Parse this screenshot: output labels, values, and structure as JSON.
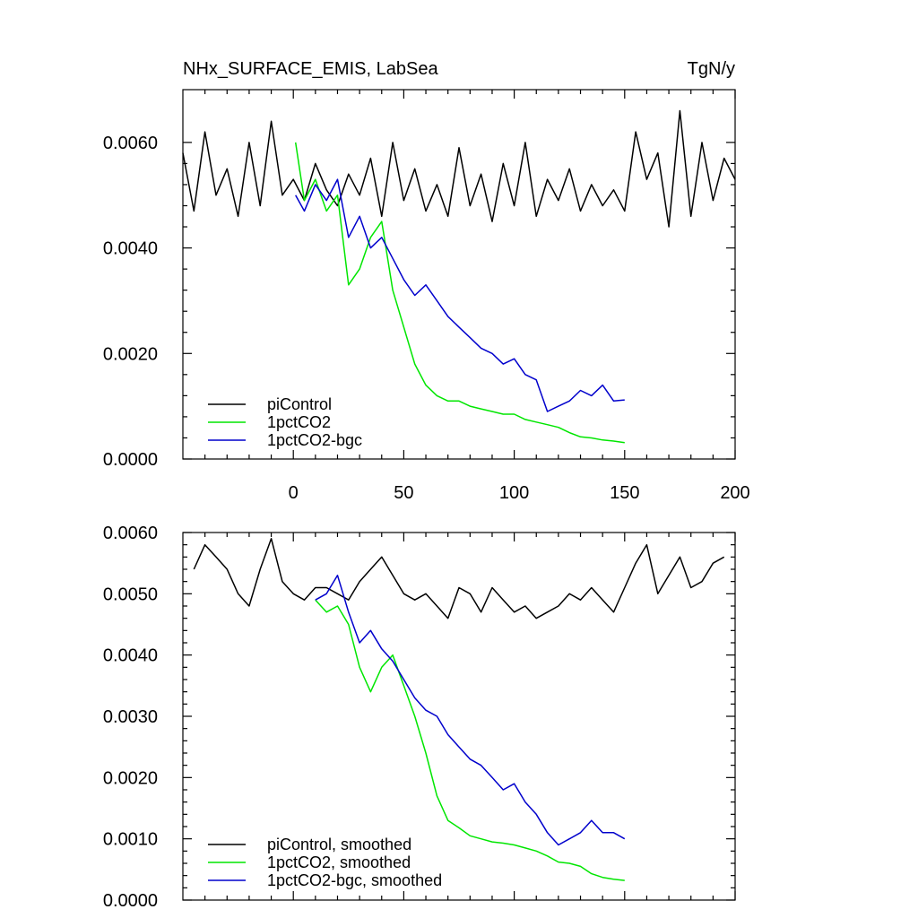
{
  "chart_data": [
    {
      "type": "line",
      "title_left": "NHx_SURFACE_EMIS, LabSea",
      "title_right": "TgN/y",
      "xlim": [
        -50,
        200
      ],
      "ylim": [
        0,
        0.007
      ],
      "xticks": [
        0,
        50,
        100,
        150,
        200
      ],
      "xtick_labels": [
        "0",
        "50",
        "100",
        "150",
        "200"
      ],
      "yticks": [
        0,
        0.002,
        0.004,
        0.006
      ],
      "ytick_labels": [
        "0.0000",
        "0.0020",
        "0.0040",
        "0.0060"
      ],
      "legend_position": "bottom-left",
      "series": [
        {
          "name": "piControl",
          "color": "#000000",
          "x": [
            -50,
            -45,
            -40,
            -35,
            -30,
            -25,
            -20,
            -15,
            -10,
            -5,
            0,
            5,
            10,
            15,
            20,
            25,
            30,
            35,
            40,
            45,
            50,
            55,
            60,
            65,
            70,
            75,
            80,
            85,
            90,
            95,
            100,
            105,
            110,
            115,
            120,
            125,
            130,
            135,
            140,
            145,
            150,
            155,
            160,
            165,
            170,
            175,
            180,
            185,
            190,
            195,
            200
          ],
          "values": [
            0.0058,
            0.0047,
            0.0062,
            0.005,
            0.0055,
            0.0046,
            0.006,
            0.0048,
            0.0064,
            0.005,
            0.0053,
            0.0049,
            0.0056,
            0.0051,
            0.0048,
            0.0054,
            0.005,
            0.0057,
            0.0046,
            0.006,
            0.0049,
            0.0055,
            0.0047,
            0.0052,
            0.0046,
            0.0059,
            0.0048,
            0.0054,
            0.0045,
            0.0056,
            0.0048,
            0.006,
            0.0046,
            0.0053,
            0.0049,
            0.0055,
            0.0047,
            0.0052,
            0.0048,
            0.0051,
            0.0047,
            0.0062,
            0.0053,
            0.0058,
            0.0044,
            0.0066,
            0.0046,
            0.006,
            0.0049,
            0.0057,
            0.0053
          ]
        },
        {
          "name": "1pctCO2",
          "color": "#00e600",
          "x": [
            1,
            5,
            10,
            15,
            20,
            25,
            30,
            35,
            40,
            45,
            50,
            55,
            60,
            65,
            70,
            75,
            80,
            85,
            90,
            95,
            100,
            105,
            110,
            115,
            120,
            125,
            130,
            135,
            140,
            145,
            150
          ],
          "values": [
            0.006,
            0.0049,
            0.0053,
            0.0047,
            0.005,
            0.0033,
            0.0036,
            0.0042,
            0.0045,
            0.0032,
            0.0025,
            0.0018,
            0.0014,
            0.0012,
            0.0011,
            0.0011,
            0.001,
            0.00095,
            0.0009,
            0.00085,
            0.00085,
            0.00075,
            0.0007,
            0.00065,
            0.0006,
            0.0005,
            0.00042,
            0.0004,
            0.00036,
            0.00034,
            0.00031
          ]
        },
        {
          "name": "1pctCO2-bgc",
          "color": "#0000cc",
          "x": [
            1,
            5,
            10,
            15,
            20,
            25,
            30,
            35,
            40,
            45,
            50,
            55,
            60,
            65,
            70,
            75,
            80,
            85,
            90,
            95,
            100,
            105,
            110,
            115,
            120,
            125,
            130,
            135,
            140,
            145,
            150
          ],
          "values": [
            0.005,
            0.0047,
            0.0052,
            0.0049,
            0.0053,
            0.0042,
            0.0046,
            0.004,
            0.0042,
            0.0038,
            0.0034,
            0.0031,
            0.0033,
            0.003,
            0.0027,
            0.0025,
            0.0023,
            0.0021,
            0.002,
            0.0018,
            0.0019,
            0.0016,
            0.0015,
            0.0009,
            0.001,
            0.0011,
            0.0013,
            0.0012,
            0.0014,
            0.0011,
            0.00112
          ]
        }
      ]
    },
    {
      "type": "line",
      "xlim": [
        -50,
        200
      ],
      "ylim": [
        0,
        0.006
      ],
      "xticks": [
        0,
        50,
        100,
        150,
        200
      ],
      "yticks": [
        0,
        0.001,
        0.002,
        0.003,
        0.004,
        0.005,
        0.006
      ],
      "ytick_labels": [
        "0.0000",
        "0.0010",
        "0.0020",
        "0.0030",
        "0.0040",
        "0.0050",
        "0.0060"
      ],
      "legend_position": "bottom-left",
      "series": [
        {
          "name": "piControl, smoothed",
          "color": "#000000",
          "x": [
            -45,
            -40,
            -35,
            -30,
            -25,
            -20,
            -15,
            -10,
            -5,
            0,
            5,
            10,
            15,
            20,
            25,
            30,
            35,
            40,
            45,
            50,
            55,
            60,
            65,
            70,
            75,
            80,
            85,
            90,
            95,
            100,
            105,
            110,
            115,
            120,
            125,
            130,
            135,
            140,
            145,
            150,
            155,
            160,
            165,
            170,
            175,
            180,
            185,
            190,
            195
          ],
          "values": [
            0.0054,
            0.0058,
            0.0056,
            0.0054,
            0.005,
            0.0048,
            0.0054,
            0.0059,
            0.0052,
            0.005,
            0.0049,
            0.0051,
            0.0051,
            0.005,
            0.0049,
            0.0052,
            0.0054,
            0.0056,
            0.0053,
            0.005,
            0.0049,
            0.005,
            0.0048,
            0.0046,
            0.0051,
            0.005,
            0.0047,
            0.0051,
            0.0049,
            0.0047,
            0.0048,
            0.0046,
            0.0047,
            0.0048,
            0.005,
            0.0049,
            0.0051,
            0.0049,
            0.0047,
            0.0051,
            0.0055,
            0.0058,
            0.005,
            0.0053,
            0.0056,
            0.0051,
            0.0052,
            0.0055,
            0.0056
          ]
        },
        {
          "name": "1pctCO2, smoothed",
          "color": "#00e600",
          "x": [
            10,
            15,
            20,
            25,
            30,
            35,
            40,
            45,
            50,
            55,
            60,
            65,
            70,
            75,
            80,
            85,
            90,
            95,
            100,
            105,
            110,
            115,
            120,
            125,
            130,
            135,
            140,
            145,
            150
          ],
          "values": [
            0.0049,
            0.0047,
            0.0048,
            0.0045,
            0.0038,
            0.0034,
            0.0038,
            0.004,
            0.0035,
            0.003,
            0.0024,
            0.0017,
            0.0013,
            0.00118,
            0.00105,
            0.001,
            0.00095,
            0.00093,
            0.0009,
            0.00085,
            0.0008,
            0.00072,
            0.00062,
            0.0006,
            0.00055,
            0.00043,
            0.00037,
            0.00034,
            0.00032
          ]
        },
        {
          "name": "1pctCO2-bgc, smoothed",
          "color": "#0000cc",
          "x": [
            10,
            15,
            20,
            25,
            30,
            35,
            40,
            45,
            50,
            55,
            60,
            65,
            70,
            75,
            80,
            85,
            90,
            95,
            100,
            105,
            110,
            115,
            120,
            125,
            130,
            135,
            140,
            145,
            150
          ],
          "values": [
            0.0049,
            0.005,
            0.0053,
            0.0047,
            0.0042,
            0.0044,
            0.0041,
            0.0039,
            0.0036,
            0.0033,
            0.0031,
            0.003,
            0.0027,
            0.0025,
            0.0023,
            0.0022,
            0.002,
            0.0018,
            0.0019,
            0.0016,
            0.0014,
            0.0011,
            0.0009,
            0.001,
            0.0011,
            0.0013,
            0.0011,
            0.0011,
            0.001
          ]
        }
      ]
    }
  ]
}
